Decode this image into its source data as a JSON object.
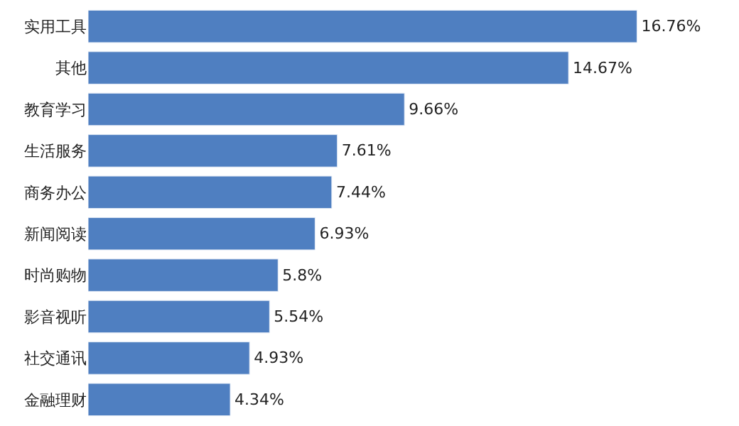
{
  "chart_data": {
    "type": "bar",
    "orientation": "horizontal",
    "categories": [
      "实用工具",
      "其他",
      "教育学习",
      "生活服务",
      "商务办公",
      "新闻阅读",
      "时尚购物",
      "影音视听",
      "社交通讯",
      "金融理财"
    ],
    "values": [
      16.76,
      14.67,
      9.66,
      7.61,
      7.44,
      6.93,
      5.8,
      5.54,
      4.93,
      4.34
    ],
    "value_labels": [
      "16.76%",
      "14.67%",
      "9.66%",
      "7.61%",
      "7.44%",
      "6.93%",
      "5.8%",
      "5.54%",
      "4.93%",
      "4.34%"
    ],
    "color": "#4f7fc1",
    "tick_labels": "y"
  }
}
